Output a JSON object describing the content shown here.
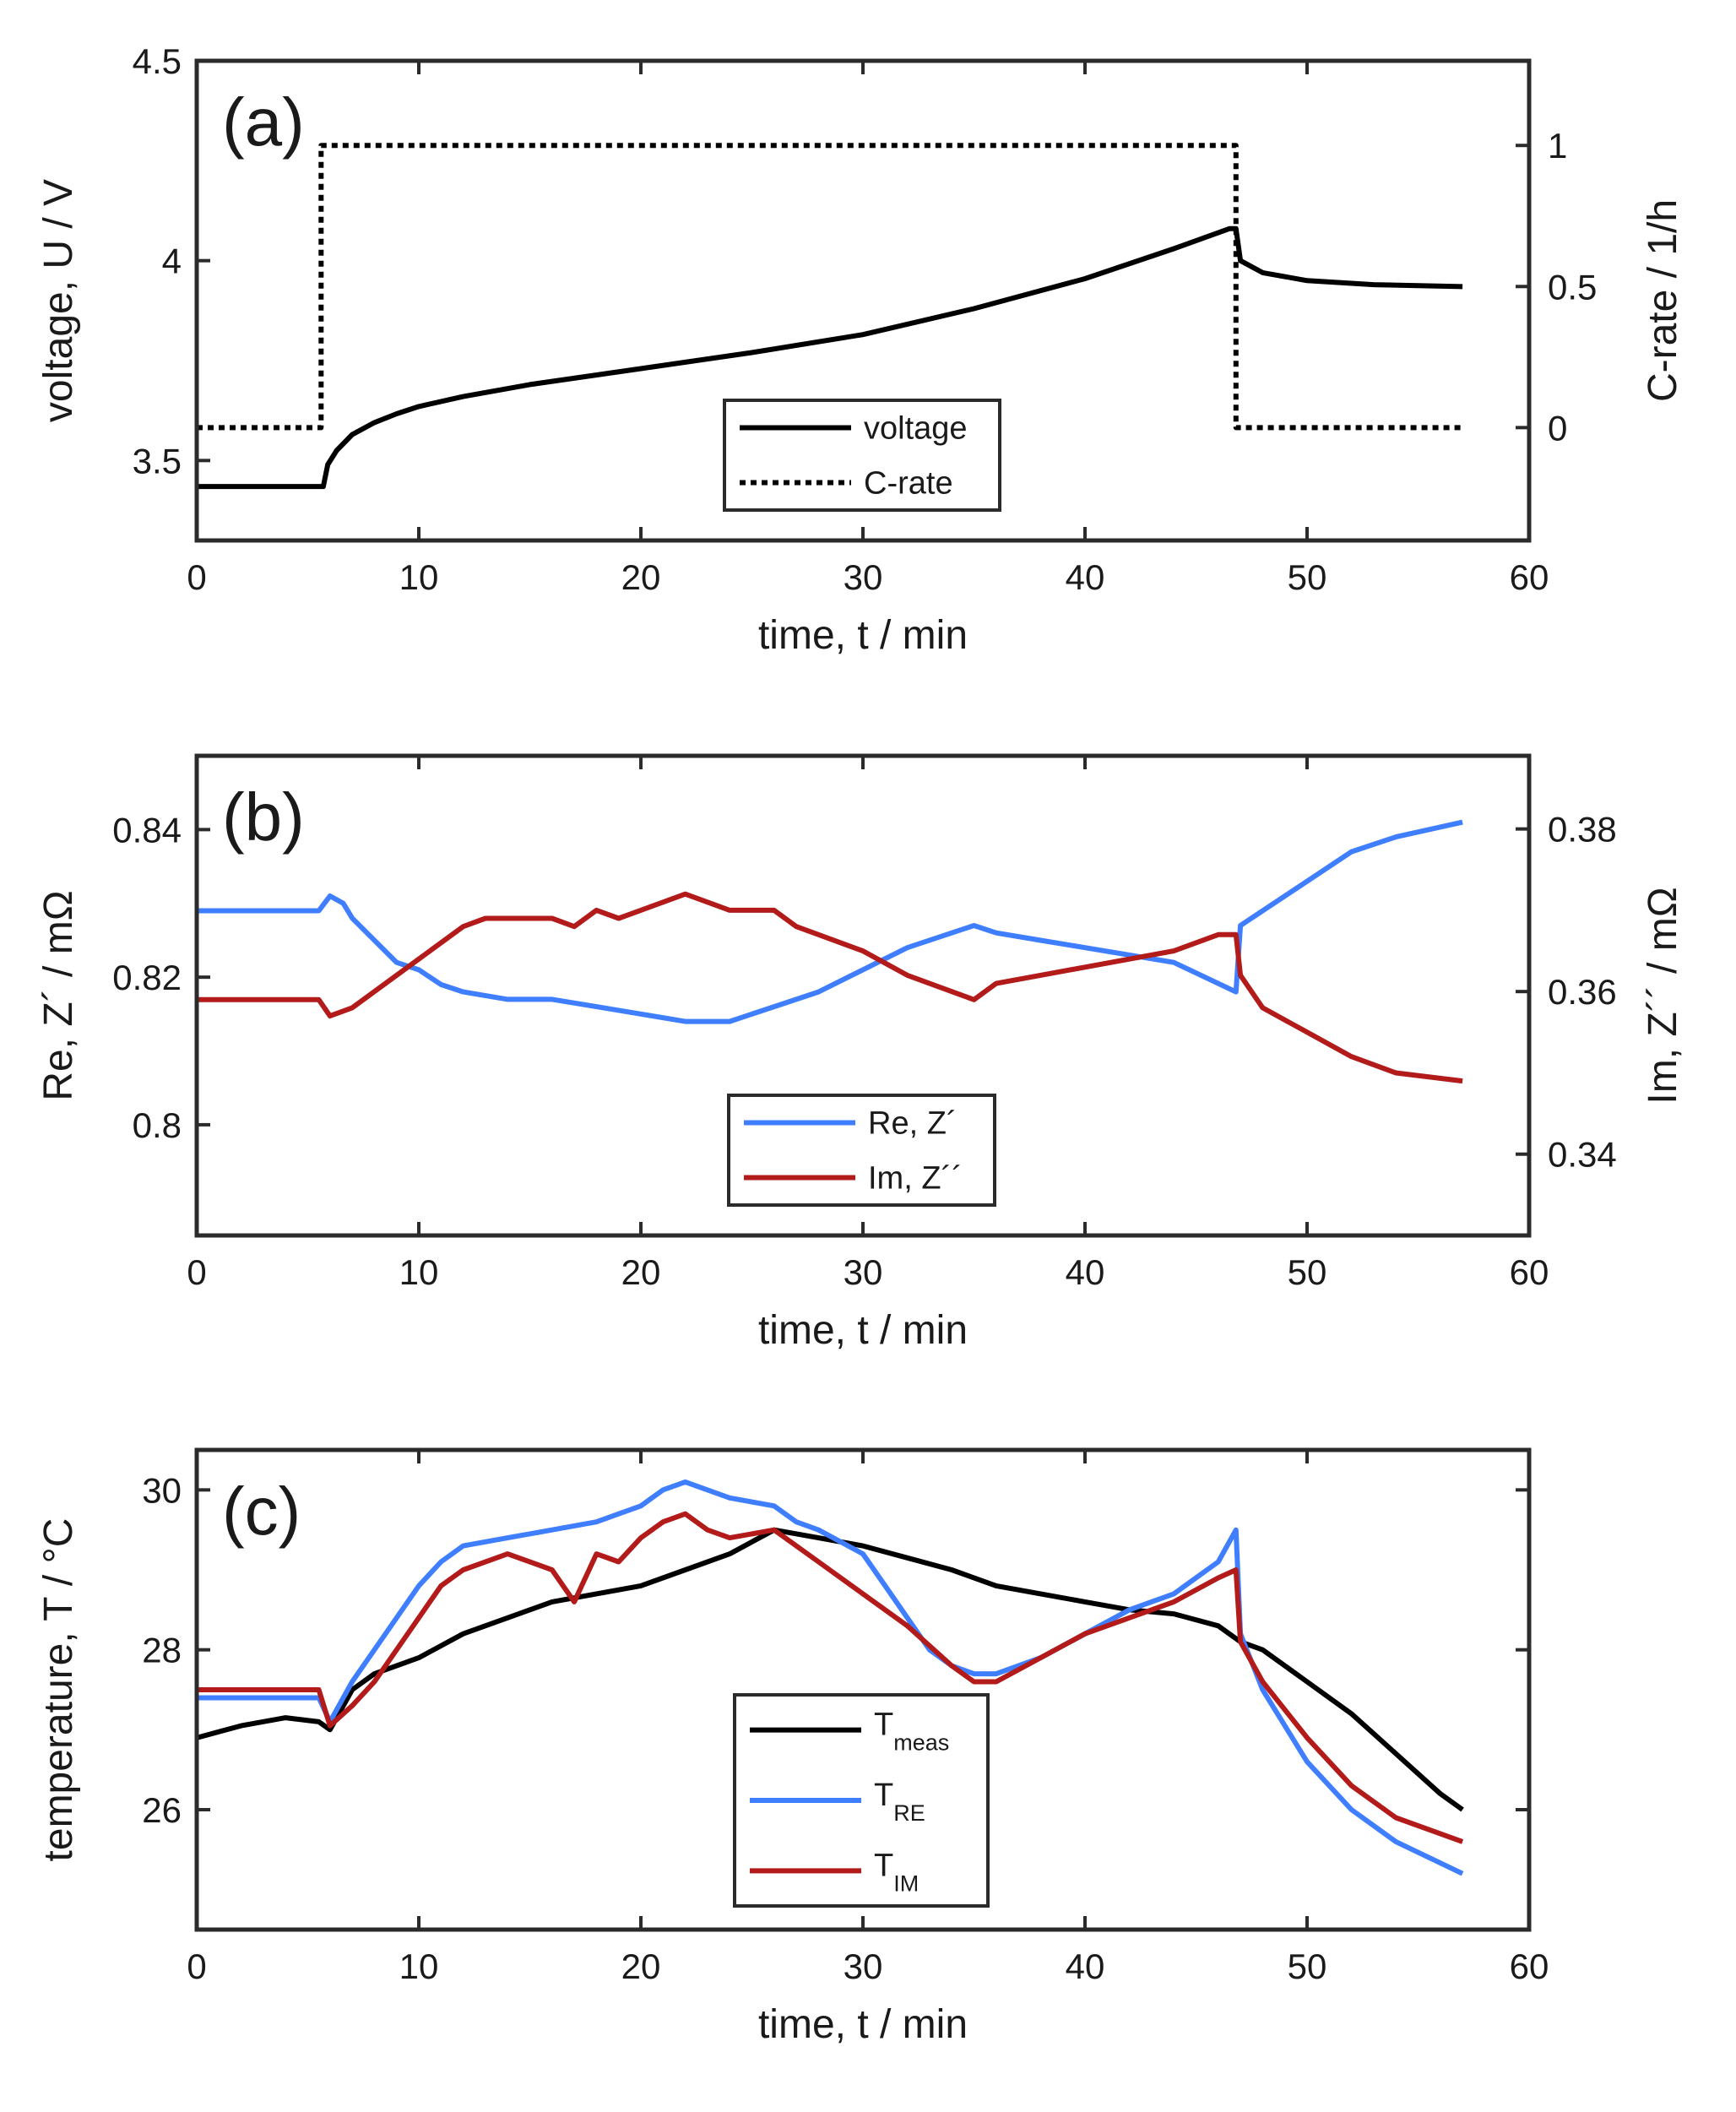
{
  "chart_data": [
    {
      "id": "a",
      "type": "line",
      "panel_label": "(a)",
      "xlabel": "time, t / min",
      "ylabel": "voltage, U / V",
      "ylabel_right": "C-rate / 1/h",
      "xlim": [
        0,
        60
      ],
      "ylim": [
        3.3,
        4.5
      ],
      "ylim_right": [
        -0.4,
        1.3
      ],
      "xticks": [
        "0",
        "10",
        "20",
        "30",
        "40",
        "50",
        "60"
      ],
      "yticks": [
        "3.5",
        "4",
        "4.5"
      ],
      "yticks_right": [
        "0",
        "0.5",
        "1"
      ],
      "legend": {
        "position": "bottom-center",
        "entries": [
          "voltage",
          "C-rate"
        ]
      },
      "series": [
        {
          "name": "voltage",
          "axis": "left",
          "color": "#000000",
          "style": "solid",
          "x": [
            0,
            5.7,
            5.9,
            6.3,
            7,
            8,
            9,
            10,
            12,
            15,
            20,
            25,
            30,
            35,
            40,
            44,
            46.5,
            46.8,
            47,
            48,
            50,
            53,
            57
          ],
          "y": [
            3.435,
            3.435,
            3.49,
            3.525,
            3.565,
            3.595,
            3.617,
            3.635,
            3.66,
            3.69,
            3.73,
            3.77,
            3.815,
            3.88,
            3.955,
            4.03,
            4.08,
            4.08,
            4.0,
            3.97,
            3.95,
            3.94,
            3.935
          ]
        },
        {
          "name": "C-rate",
          "axis": "right",
          "color": "#000000",
          "style": "dotted",
          "x": [
            0,
            5.6,
            5.6,
            46.8,
            46.8,
            57
          ],
          "y": [
            0,
            0,
            1,
            1,
            0,
            0
          ]
        }
      ]
    },
    {
      "id": "b",
      "type": "line",
      "panel_label": "(b)",
      "xlabel": "time, t / min",
      "ylabel": "Re, Z´ / mΩ",
      "ylabel_right": "Im, Z´´ / mΩ",
      "xlim": [
        0,
        60
      ],
      "ylim": [
        0.785,
        0.85
      ],
      "ylim_right": [
        0.33,
        0.389
      ],
      "xticks": [
        "0",
        "10",
        "20",
        "30",
        "40",
        "50",
        "60"
      ],
      "yticks": [
        "0.8",
        "0.82",
        "0.84"
      ],
      "yticks_right": [
        "0.34",
        "0.36",
        "0.38"
      ],
      "legend": {
        "position": "bottom-center",
        "entries": [
          "Re, Z´",
          "Im, Z´´"
        ]
      },
      "series": [
        {
          "name": "Re, Z´",
          "axis": "left",
          "color": "#3f7fff",
          "style": "solid",
          "x": [
            0,
            5.5,
            6,
            6.6,
            7,
            8,
            9,
            10,
            11,
            12,
            14,
            16,
            18,
            20,
            22,
            24,
            26,
            28,
            30,
            32,
            34,
            35,
            36,
            38,
            40,
            42,
            44,
            46.8,
            47,
            48,
            50,
            52,
            54,
            57
          ],
          "y": [
            0.829,
            0.829,
            0.831,
            0.83,
            0.828,
            0.825,
            0.822,
            0.821,
            0.819,
            0.818,
            0.817,
            0.817,
            0.816,
            0.815,
            0.814,
            0.814,
            0.816,
            0.818,
            0.821,
            0.824,
            0.826,
            0.827,
            0.826,
            0.825,
            0.824,
            0.823,
            0.822,
            0.818,
            0.827,
            0.829,
            0.833,
            0.837,
            0.839,
            0.841
          ]
        },
        {
          "name": "Im, Z´´",
          "axis": "right",
          "color": "#b31b1b",
          "style": "solid",
          "x": [
            0,
            5.5,
            6,
            7,
            8,
            9,
            10,
            11,
            12,
            13,
            14,
            16,
            17,
            18,
            19,
            20,
            21,
            22,
            24,
            26,
            27,
            28,
            30,
            32,
            34,
            35,
            36,
            38,
            40,
            42,
            44,
            46,
            46.8,
            47,
            48,
            50,
            52,
            54,
            57
          ],
          "y": [
            0.359,
            0.359,
            0.357,
            0.358,
            0.36,
            0.362,
            0.364,
            0.366,
            0.368,
            0.369,
            0.369,
            0.369,
            0.368,
            0.37,
            0.369,
            0.37,
            0.371,
            0.372,
            0.37,
            0.37,
            0.368,
            0.367,
            0.365,
            0.362,
            0.36,
            0.359,
            0.361,
            0.362,
            0.363,
            0.364,
            0.365,
            0.367,
            0.367,
            0.362,
            0.358,
            0.355,
            0.352,
            0.35,
            0.349
          ]
        }
      ]
    },
    {
      "id": "c",
      "type": "line",
      "panel_label": "(c)",
      "xlabel": "time, t / min",
      "ylabel": "temperature, T / °C",
      "xlim": [
        0,
        60
      ],
      "ylim": [
        24.5,
        30.5
      ],
      "xticks": [
        "0",
        "10",
        "20",
        "30",
        "40",
        "50",
        "60"
      ],
      "yticks": [
        "26",
        "28",
        "30"
      ],
      "legend": {
        "position": "bottom-center",
        "entries": [
          {
            "main": "T",
            "sub": "meas"
          },
          {
            "main": "T",
            "sub": "RE"
          },
          {
            "main": "T",
            "sub": "IM"
          }
        ]
      },
      "series": [
        {
          "name": "T_meas",
          "color": "#000000",
          "style": "solid",
          "x": [
            0,
            2,
            4,
            5.5,
            6,
            7,
            8,
            9,
            10,
            12,
            14,
            16,
            18,
            20,
            22,
            24,
            26,
            28,
            30,
            32,
            34,
            36,
            38,
            40,
            42,
            44,
            46,
            47,
            48,
            50,
            52,
            54,
            56,
            57
          ],
          "y": [
            26.9,
            27.05,
            27.15,
            27.1,
            27.0,
            27.5,
            27.7,
            27.8,
            27.9,
            28.2,
            28.4,
            28.6,
            28.7,
            28.8,
            29.0,
            29.2,
            29.5,
            29.4,
            29.3,
            29.15,
            29.0,
            28.8,
            28.7,
            28.6,
            28.5,
            28.45,
            28.3,
            28.1,
            28.0,
            27.6,
            27.2,
            26.7,
            26.2,
            26.0
          ]
        },
        {
          "name": "T_RE",
          "color": "#3f7fff",
          "style": "solid",
          "x": [
            0,
            5.5,
            6,
            7,
            8,
            9,
            10,
            11,
            12,
            14,
            16,
            18,
            19,
            20,
            21,
            22,
            24,
            26,
            27,
            28,
            30,
            31,
            32,
            33,
            34,
            35,
            36,
            38,
            40,
            42,
            44,
            46,
            46.8,
            47,
            48,
            50,
            52,
            54,
            57
          ],
          "y": [
            27.4,
            27.4,
            27.1,
            27.6,
            28.0,
            28.4,
            28.8,
            29.1,
            29.3,
            29.4,
            29.5,
            29.6,
            29.7,
            29.8,
            30.0,
            30.1,
            29.9,
            29.8,
            29.6,
            29.5,
            29.2,
            28.8,
            28.4,
            28.0,
            27.8,
            27.7,
            27.7,
            27.9,
            28.2,
            28.5,
            28.7,
            29.1,
            29.5,
            28.2,
            27.5,
            26.6,
            26.0,
            25.6,
            25.2
          ]
        },
        {
          "name": "T_IM",
          "color": "#b31b1b",
          "style": "solid",
          "x": [
            0,
            5.5,
            6,
            7,
            8,
            9,
            10,
            11,
            12,
            14,
            16,
            17,
            18,
            19,
            20,
            21,
            22,
            23,
            24,
            26,
            28,
            30,
            32,
            34,
            35,
            36,
            38,
            40,
            42,
            44,
            46,
            46.8,
            47,
            48,
            50,
            52,
            54,
            57
          ],
          "y": [
            27.5,
            27.5,
            27.05,
            27.3,
            27.6,
            28.0,
            28.4,
            28.8,
            29.0,
            29.2,
            29.0,
            28.6,
            29.2,
            29.1,
            29.4,
            29.6,
            29.7,
            29.5,
            29.4,
            29.5,
            29.1,
            28.7,
            28.3,
            27.8,
            27.6,
            27.6,
            27.9,
            28.2,
            28.4,
            28.6,
            28.9,
            29.0,
            28.1,
            27.6,
            26.9,
            26.3,
            25.9,
            25.6
          ]
        }
      ]
    }
  ]
}
